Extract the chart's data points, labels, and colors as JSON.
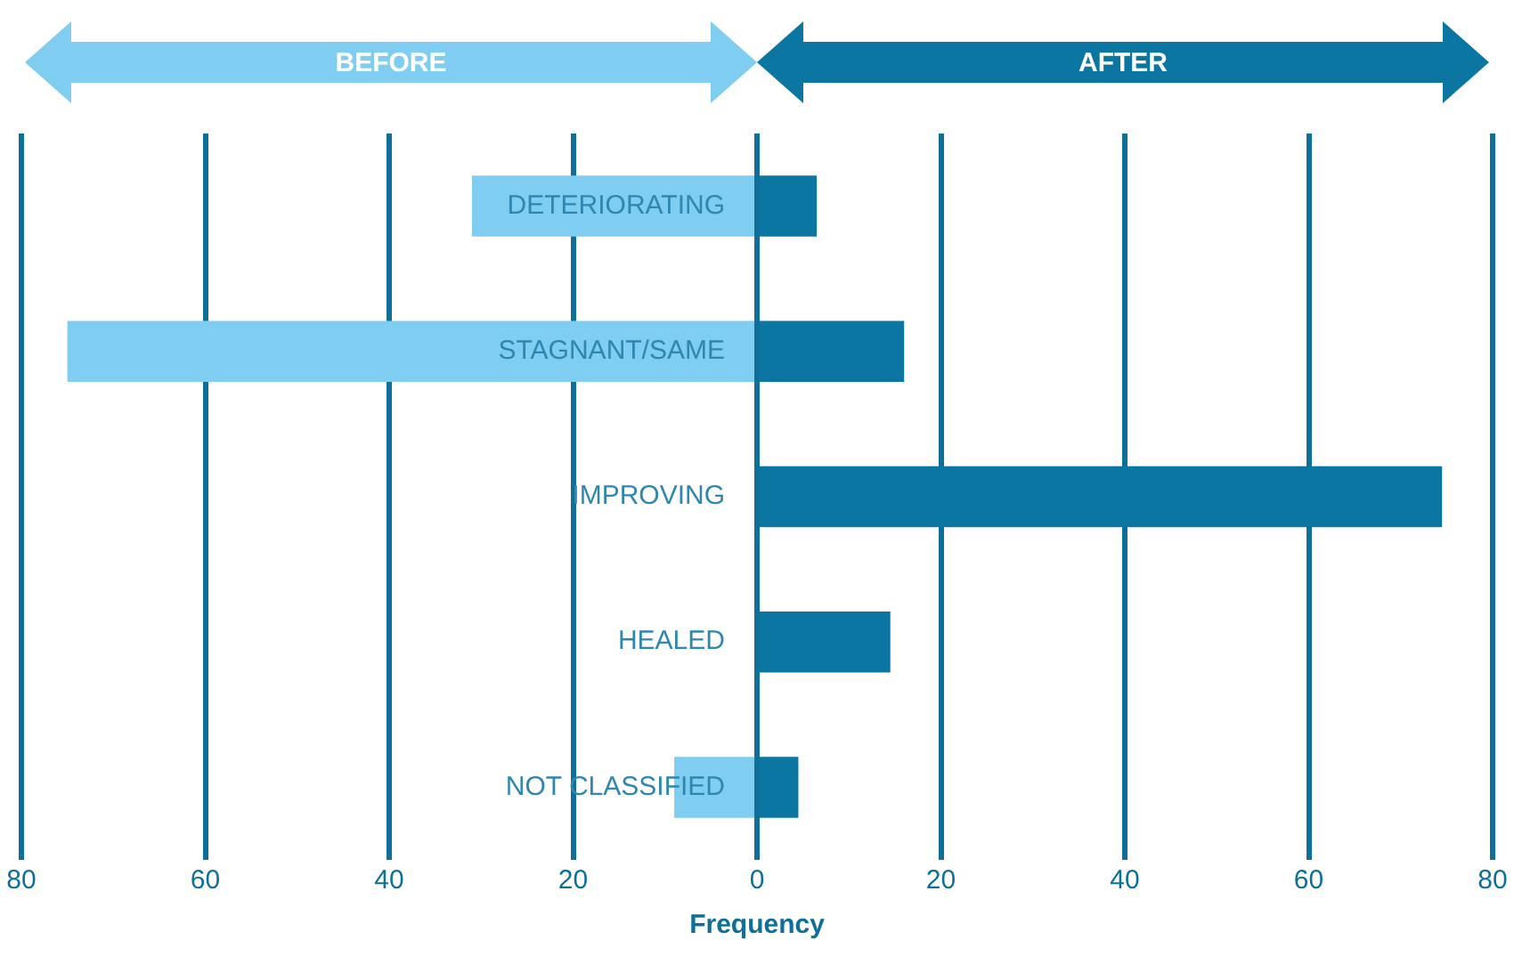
{
  "chart_data": {
    "type": "bar",
    "orientation": "horizontal",
    "stacked": true,
    "xlabel": "Frequency",
    "categories": [
      "DETERIORATING",
      "STAGNANT/SAME",
      "IMPROVING",
      "HEALED",
      "NOT CLASSIFIED"
    ],
    "series": [
      {
        "name": "BEFORE",
        "color": "#7fcdf1",
        "values": [
          -31,
          -75,
          0,
          0,
          -9
        ]
      },
      {
        "name": "AFTER",
        "color": "#0a76a1",
        "values": [
          6.5,
          16,
          74.5,
          14.5,
          4.5
        ]
      }
    ],
    "xlim": [
      -80,
      80
    ],
    "xticks": [
      {
        "value": -80,
        "label": "80"
      },
      {
        "value": -60,
        "label": "60"
      },
      {
        "value": -40,
        "label": "40"
      },
      {
        "value": -20,
        "label": "20"
      },
      0,
      20,
      40,
      60,
      80
    ],
    "grid": "x",
    "legend": "top"
  }
}
